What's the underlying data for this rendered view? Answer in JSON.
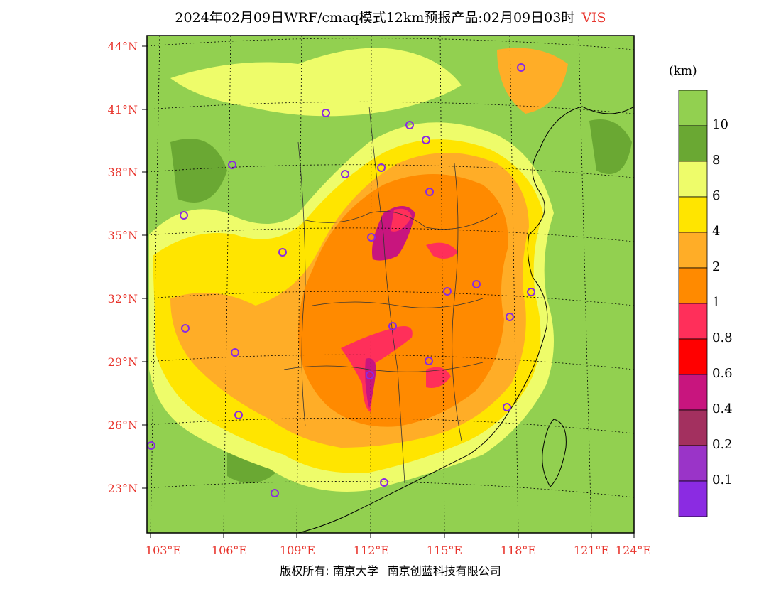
{
  "title": {
    "main": "2024年02月09日WRF/cmaq模式12km预报产品:02月09日03时",
    "variable": "VIS"
  },
  "map": {
    "lat_labels": [
      "44°N",
      "41°N",
      "38°N",
      "35°N",
      "32°N",
      "29°N",
      "26°N",
      "23°N"
    ],
    "lon_labels": [
      "103°E",
      "106°E",
      "109°E",
      "112°E",
      "115°E",
      "118°E",
      "121°E",
      "124°E"
    ]
  },
  "legend": {
    "unit": "(km)",
    "levels": [
      "10",
      "8",
      "6",
      "4",
      "2",
      "1",
      "0.8",
      "0.6",
      "0.4",
      "0.2",
      "0.1"
    ],
    "colors": [
      "#92d050",
      "#6aa833",
      "#eefc6a",
      "#ffe500",
      "#ffad27",
      "#ff8a00",
      "#ff2f5a",
      "#ff0000",
      "#c8157e",
      "#a3305f",
      "#9a34c8",
      "#8b2be2"
    ]
  },
  "footer": {
    "copyright": "版权所有: 南京大学",
    "company": "南京创蓝科技有限公司"
  }
}
